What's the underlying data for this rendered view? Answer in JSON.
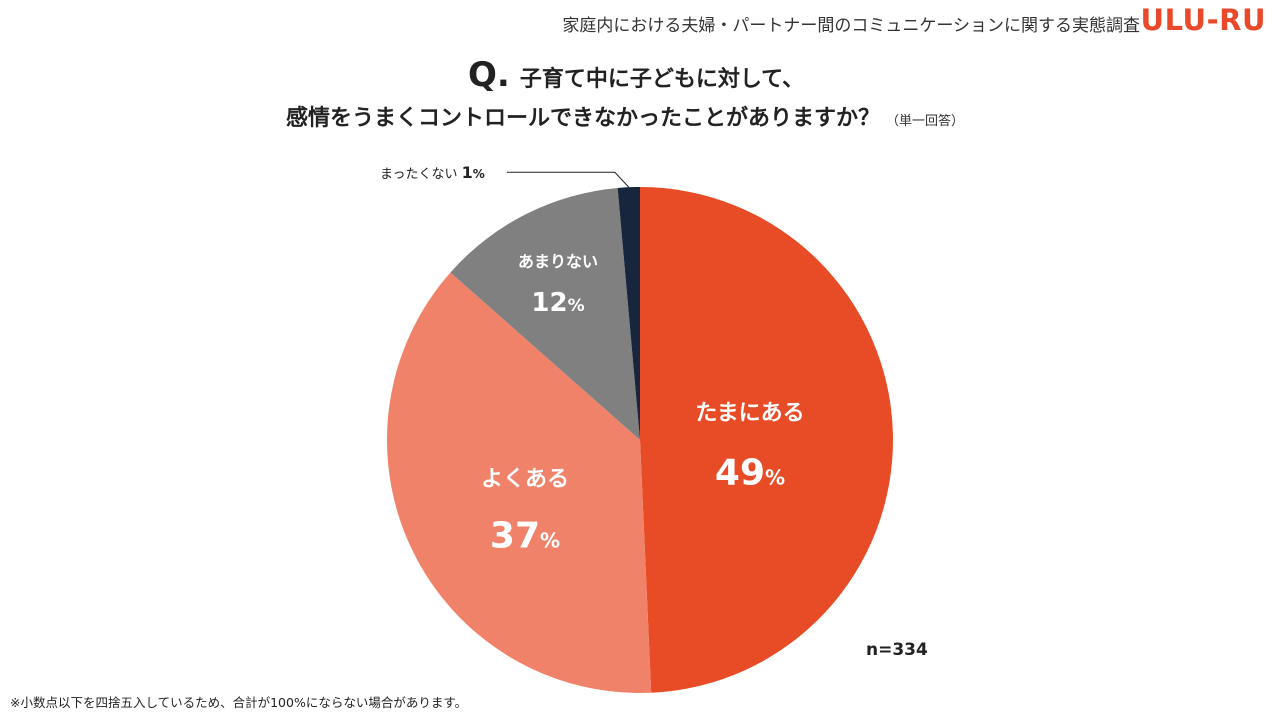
{
  "header": {
    "survey_title": "家庭内における夫婦・パートナー間のコミュニケーションに関する実態調査",
    "logo_text": "ULU-RU"
  },
  "question": {
    "mark": "Q.",
    "line1": "子育て中に子どもに対して、",
    "line2": "感情をうまくコントロールできなかったことがありますか？",
    "note": "（単一回答）"
  },
  "colors": {
    "tamani": "#e84c26",
    "yoku": "#f0826a",
    "amari": "#808080",
    "mattaku": "#17253d"
  },
  "chart_data": {
    "type": "pie",
    "slices": [
      {
        "label": "たまにある",
        "value": 49,
        "display": "49",
        "unit": "%",
        "color": "#e84c26"
      },
      {
        "label": "よくある",
        "value": 37,
        "display": "37",
        "unit": "%",
        "color": "#f0826a"
      },
      {
        "label": "あまりない",
        "value": 12,
        "display": "12",
        "unit": "%",
        "color": "#808080"
      },
      {
        "label": "まったくない",
        "value": 1.4,
        "display": "1",
        "unit": "%",
        "color": "#17253d"
      }
    ]
  },
  "sample_size": "n=334",
  "footnote": "※小数点以下を四捨五入しているため、合計が100%にならない場合があります。"
}
